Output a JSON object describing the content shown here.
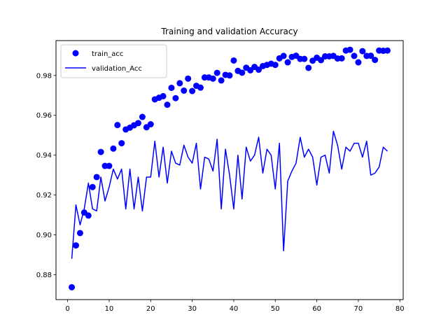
{
  "chart_data": {
    "type": "line",
    "title": "Training and validation Accuracy",
    "xlabel": "",
    "ylabel": "",
    "xlim": [
      -2.8,
      80.8
    ],
    "ylim": [
      0.8675,
      0.9975
    ],
    "xticks": [
      0,
      10,
      20,
      30,
      40,
      50,
      60,
      70,
      80
    ],
    "xtick_labels": [
      "0",
      "10",
      "20",
      "30",
      "40",
      "50",
      "60",
      "70",
      "80"
    ],
    "yticks": [
      0.88,
      0.9,
      0.92,
      0.94,
      0.96,
      0.98
    ],
    "ytick_labels": [
      "0.88",
      "0.90",
      "0.92",
      "0.94",
      "0.96",
      "0.98"
    ],
    "grid": false,
    "legend_position": "top-left",
    "color": "#0000ff",
    "series": [
      {
        "name": "train_acc",
        "style": "markers",
        "x": [
          1,
          2,
          3,
          4,
          5,
          6,
          7,
          8,
          9,
          10,
          11,
          12,
          13,
          14,
          15,
          16,
          17,
          18,
          19,
          20,
          21,
          22,
          23,
          24,
          25,
          26,
          27,
          28,
          29,
          30,
          31,
          32,
          33,
          34,
          35,
          36,
          37,
          38,
          39,
          40,
          41,
          42,
          43,
          44,
          45,
          46,
          47,
          48,
          49,
          50,
          51,
          52,
          53,
          54,
          55,
          56,
          57,
          58,
          59,
          60,
          61,
          62,
          63,
          64,
          65,
          66,
          67,
          68,
          69,
          70,
          71,
          72,
          73,
          74,
          75,
          76,
          77
        ],
        "y": [
          0.8737,
          0.8947,
          0.9009,
          0.9112,
          0.9097,
          0.924,
          0.929,
          0.9416,
          0.9346,
          0.9346,
          0.9433,
          0.9551,
          0.946,
          0.9529,
          0.9538,
          0.955,
          0.9561,
          0.9592,
          0.954,
          0.9555,
          0.968,
          0.9688,
          0.9696,
          0.9653,
          0.9738,
          0.9686,
          0.9761,
          0.9724,
          0.9784,
          0.9722,
          0.9748,
          0.9739,
          0.979,
          0.979,
          0.9784,
          0.9813,
          0.9775,
          0.9803,
          0.98,
          0.9875,
          0.9823,
          0.9814,
          0.9839,
          0.9826,
          0.9843,
          0.9829,
          0.9847,
          0.9853,
          0.9859,
          0.9853,
          0.9886,
          0.9898,
          0.9866,
          0.9893,
          0.9899,
          0.9883,
          0.9883,
          0.9838,
          0.9874,
          0.9889,
          0.9877,
          0.9896,
          0.9896,
          0.9898,
          0.9885,
          0.9886,
          0.9925,
          0.9929,
          0.9898,
          0.9866,
          0.9922,
          0.9898,
          0.9899,
          0.9878,
          0.9925,
          0.9924,
          0.9925
        ]
      },
      {
        "name": "validation_Acc",
        "style": "line",
        "x": [
          1,
          2,
          3,
          4,
          5,
          6,
          7,
          8,
          9,
          10,
          11,
          12,
          13,
          14,
          15,
          16,
          17,
          18,
          19,
          20,
          21,
          22,
          23,
          24,
          25,
          26,
          27,
          28,
          29,
          30,
          31,
          32,
          33,
          34,
          35,
          36,
          37,
          38,
          39,
          40,
          41,
          42,
          43,
          44,
          45,
          46,
          47,
          48,
          49,
          50,
          51,
          52,
          53,
          54,
          55,
          56,
          57,
          58,
          59,
          60,
          61,
          62,
          63,
          64,
          65,
          66,
          67,
          68,
          69,
          70,
          71,
          72,
          73,
          74,
          75,
          76,
          77
        ],
        "y": [
          0.888,
          0.915,
          0.905,
          0.913,
          0.926,
          0.913,
          0.912,
          0.929,
          0.917,
          0.924,
          0.933,
          0.928,
          0.933,
          0.913,
          0.933,
          0.913,
          0.929,
          0.912,
          0.929,
          0.929,
          0.947,
          0.929,
          0.944,
          0.926,
          0.942,
          0.936,
          0.935,
          0.945,
          0.939,
          0.936,
          0.946,
          0.923,
          0.939,
          0.938,
          0.932,
          0.948,
          0.913,
          0.943,
          0.93,
          0.913,
          0.94,
          0.918,
          0.944,
          0.937,
          0.94,
          0.949,
          0.931,
          0.943,
          0.94,
          0.923,
          0.946,
          0.892,
          0.927,
          0.932,
          0.936,
          0.949,
          0.939,
          0.943,
          0.939,
          0.925,
          0.939,
          0.94,
          0.931,
          0.952,
          0.945,
          0.933,
          0.944,
          0.942,
          0.946,
          0.946,
          0.939,
          0.947,
          0.93,
          0.931,
          0.934,
          0.944,
          0.942
        ]
      }
    ]
  }
}
